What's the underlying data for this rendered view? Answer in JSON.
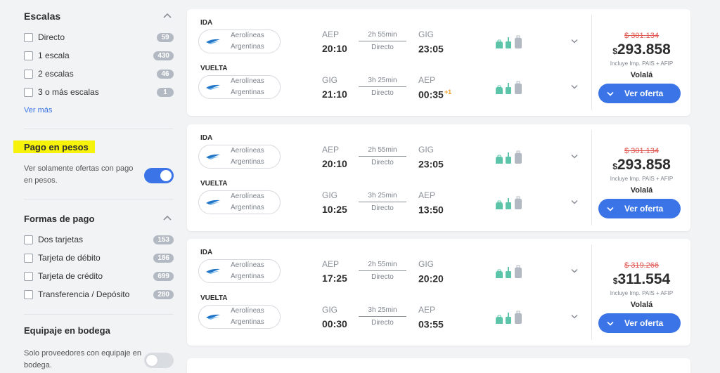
{
  "filters": {
    "escalas": {
      "title": "Escalas",
      "items": [
        {
          "label": "Directo",
          "count": "59"
        },
        {
          "label": "1 escala",
          "count": "430"
        },
        {
          "label": "2 escalas",
          "count": "46"
        },
        {
          "label": "3 o más escalas",
          "count": "1"
        }
      ],
      "more_link": "Ver más"
    },
    "pago_pesos": {
      "title": "Pago en pesos",
      "description": "Ver solamente ofertas con pago en pesos.",
      "toggle_on": true
    },
    "formas_pago": {
      "title": "Formas de pago",
      "items": [
        {
          "label": "Dos tarjetas",
          "count": "153"
        },
        {
          "label": "Tarjeta de débito",
          "count": "186"
        },
        {
          "label": "Tarjeta de crédito",
          "count": "699"
        },
        {
          "label": "Transferencia / Depósito",
          "count": "280"
        }
      ]
    },
    "equipaje": {
      "title": "Equipaje en bodega",
      "description": "Solo proveedores con equipaje en bodega.",
      "toggle_on": false
    }
  },
  "offers": [
    {
      "legs": [
        {
          "tag": "IDA",
          "airline": [
            "Aerolíneas",
            "Argentinas"
          ],
          "from": "AEP",
          "dep": "20:10",
          "duration": "2h 55min",
          "stops": "Directo",
          "to": "GIG",
          "arr": "23:05",
          "next_day": ""
        },
        {
          "tag": "VUELTA",
          "airline": [
            "Aerolíneas",
            "Argentinas"
          ],
          "from": "GIG",
          "dep": "21:10",
          "duration": "3h 25min",
          "stops": "Directo",
          "to": "AEP",
          "arr": "00:35",
          "next_day": "+1"
        }
      ],
      "old_price": "$ 301.134",
      "currency": "$",
      "price": "293.858",
      "includes": "Incluye Imp. PAIS + AFIP",
      "provider": "Volalá",
      "button": "Ver oferta"
    },
    {
      "legs": [
        {
          "tag": "IDA",
          "airline": [
            "Aerolíneas",
            "Argentinas"
          ],
          "from": "AEP",
          "dep": "20:10",
          "duration": "2h 55min",
          "stops": "Directo",
          "to": "GIG",
          "arr": "23:05",
          "next_day": ""
        },
        {
          "tag": "VUELTA",
          "airline": [
            "Aerolíneas",
            "Argentinas"
          ],
          "from": "GIG",
          "dep": "10:25",
          "duration": "3h 25min",
          "stops": "Directo",
          "to": "AEP",
          "arr": "13:50",
          "next_day": ""
        }
      ],
      "old_price": "$ 301.134",
      "currency": "$",
      "price": "293.858",
      "includes": "Incluye Imp. PAIS + AFIP",
      "provider": "Volalá",
      "button": "Ver oferta"
    },
    {
      "legs": [
        {
          "tag": "IDA",
          "airline": [
            "Aerolíneas",
            "Argentinas"
          ],
          "from": "AEP",
          "dep": "17:25",
          "duration": "2h 55min",
          "stops": "Directo",
          "to": "GIG",
          "arr": "20:20",
          "next_day": ""
        },
        {
          "tag": "VUELTA",
          "airline": [
            "Aerolíneas",
            "Argentinas"
          ],
          "from": "GIG",
          "dep": "00:30",
          "duration": "3h 25min",
          "stops": "Directo",
          "to": "AEP",
          "arr": "03:55",
          "next_day": ""
        }
      ],
      "old_price": "$ 319.266",
      "currency": "$",
      "price": "311.554",
      "includes": "Incluye Imp. PAIS + AFIP",
      "provider": "Volalá",
      "button": "Ver oferta"
    }
  ],
  "colors": {
    "accent": "#3b74e6",
    "old_price": "#e0534c",
    "next_day": "#f39a1f",
    "highlight": "#f6f20a",
    "bag_green": "#5cc4a8",
    "bag_grey": "#b3b9c2"
  },
  "icons": {
    "caret": "chevron-up-icon",
    "expand": "chevron-down-icon",
    "airline_logo": "aerolineas-argentinas-logo",
    "bags": [
      "personal-item-icon",
      "carry-on-icon",
      "checked-bag-icon"
    ]
  }
}
